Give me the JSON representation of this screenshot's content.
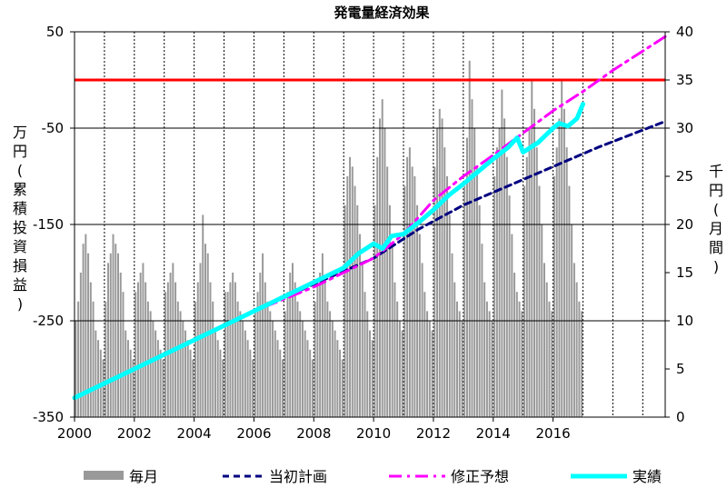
{
  "chart_data": {
    "type": "bar+line",
    "title": "発電量経済効果",
    "y_left": {
      "label": [
        "万",
        "円",
        "(",
        "累",
        "積",
        "投",
        "資",
        "損",
        "益",
        ")"
      ],
      "range": [
        -350,
        50
      ],
      "ticks": [
        "50",
        "-50",
        "-150",
        "-250",
        "-350"
      ],
      "tick_values": [
        50,
        -50,
        -150,
        -250,
        -350
      ]
    },
    "y_right": {
      "label": [
        "千",
        "円",
        "(",
        "月",
        "間",
        ")"
      ],
      "range": [
        0,
        40
      ],
      "ticks": [
        "40",
        "35",
        "30",
        "25",
        "20",
        "15",
        "10",
        "5",
        "0"
      ],
      "tick_values": [
        40,
        35,
        30,
        25,
        20,
        15,
        10,
        5,
        0
      ]
    },
    "x": {
      "range": [
        2000,
        2019.75
      ],
      "ticks": [
        "2000",
        "2002",
        "2004",
        "2006",
        "2008",
        "2010",
        "2012",
        "2014",
        "2016"
      ],
      "tick_values": [
        2000,
        2002,
        2004,
        2006,
        2008,
        2010,
        2012,
        2014,
        2016
      ]
    },
    "grid": {
      "vertical": "dotted, yearly",
      "horizontal": "solid, every 100 (left axis)"
    },
    "reference_line": {
      "axis": "left",
      "value": 0,
      "color": "#ff0000"
    },
    "series": [
      {
        "name": "毎月",
        "type": "bar",
        "axis": "right",
        "color": "#999999",
        "x_start": 2000.0,
        "x_step_months": 1,
        "values": [
          10.0,
          12.0,
          15.0,
          18.0,
          19.0,
          17.0,
          14.0,
          12.0,
          9.0,
          8.0,
          7.0,
          6.0,
          12.0,
          16.0,
          17.0,
          19.0,
          18.0,
          17.0,
          15.0,
          13.0,
          9.0,
          8.0,
          7.0,
          6.0,
          13.0,
          14.0,
          15.0,
          16.0,
          14.0,
          12.0,
          11.0,
          10.0,
          9.0,
          8.0,
          7.0,
          6.0,
          13.0,
          14.0,
          15.0,
          16.0,
          14.0,
          12.0,
          11.0,
          10.0,
          9.0,
          8.0,
          7.0,
          6.0,
          12.0,
          14.0,
          16.0,
          21.0,
          18.0,
          17.0,
          14.0,
          12.0,
          9.0,
          8.0,
          7.0,
          6.0,
          13.0,
          13.0,
          14.0,
          15.0,
          14.0,
          12.0,
          11.0,
          10.0,
          9.0,
          8.0,
          7.0,
          6.0,
          11.0,
          13.0,
          15.0,
          17.0,
          14.0,
          12.0,
          11.0,
          10.0,
          9.0,
          8.0,
          7.0,
          6.0,
          11.0,
          13.0,
          15.0,
          16.0,
          14.0,
          12.0,
          11.0,
          10.0,
          9.0,
          8.0,
          7.0,
          6.0,
          12.0,
          14.0,
          15.0,
          17.0,
          14.0,
          12.0,
          11.0,
          10.0,
          9.0,
          8.0,
          7.0,
          6.0,
          22.0,
          25.0,
          27.0,
          26.0,
          24.0,
          22.0,
          19.0,
          16.0,
          13.0,
          11.0,
          9.0,
          8.0,
          22.0,
          27.0,
          31.0,
          33.0,
          30.0,
          26.0,
          22.0,
          18.0,
          14.0,
          12.0,
          10.0,
          9.0,
          24.0,
          27.0,
          28.0,
          26.0,
          25.0,
          22.0,
          19.0,
          16.0,
          13.0,
          11.0,
          10.0,
          9.0,
          26.0,
          30.0,
          32.0,
          31.0,
          28.0,
          25.0,
          21.0,
          17.0,
          14.0,
          12.0,
          11.0,
          10.0,
          24.0,
          29.0,
          37.0,
          33.0,
          30.0,
          26.0,
          22.0,
          18.0,
          14.0,
          12.0,
          11.0,
          10.0,
          25.0,
          28.0,
          30.0,
          34.0,
          31.0,
          27.0,
          23.0,
          19.0,
          15.0,
          13.0,
          12.0,
          11.0,
          24.0,
          27.0,
          30.0,
          35.0,
          32.0,
          28.0,
          24.0,
          20.0,
          16.0,
          14.0,
          12.0,
          11.0,
          25.0,
          28.0,
          31.0,
          35.0,
          32.0,
          28.0,
          24.0,
          20.0,
          16.0,
          14.0,
          12.0,
          11.0
        ]
      },
      {
        "name": "当初計画",
        "type": "line",
        "axis": "left",
        "color": "#000080",
        "dash": "dashed",
        "x": [
          2000,
          2002,
          2004,
          2006,
          2008,
          2010,
          2011.5,
          2013,
          2014.5,
          2016,
          2017.5,
          2019,
          2019.75
        ],
        "y": [
          -330,
          -300,
          -270,
          -240,
          -212,
          -185,
          -155,
          -130,
          -110,
          -90,
          -70,
          -52,
          -43
        ]
      },
      {
        "name": "修正予想",
        "type": "line",
        "axis": "left",
        "color": "#ff00ff",
        "dash": "long-dash",
        "x": [
          2000,
          2002,
          2004,
          2006,
          2008,
          2009,
          2010,
          2011,
          2012,
          2013,
          2014,
          2015,
          2016,
          2017,
          2018,
          2019,
          2019.75
        ],
        "y": [
          -330,
          -300,
          -270,
          -240,
          -215,
          -200,
          -185,
          -160,
          -125,
          -100,
          -78,
          -55,
          -32,
          -12,
          10,
          30,
          45
        ]
      },
      {
        "name": "実績",
        "type": "line",
        "axis": "left",
        "color": "#00ffff",
        "x": [
          2000,
          2001,
          2002,
          2003,
          2004,
          2005,
          2006,
          2007,
          2008,
          2009,
          2009.5,
          2010,
          2010.3,
          2010.6,
          2011,
          2011.5,
          2012,
          2012.5,
          2013,
          2013.5,
          2014,
          2014.5,
          2014.8,
          2015,
          2015.5,
          2016,
          2016.2,
          2016.5,
          2016.8,
          2017
        ],
        "y": [
          -330,
          -315,
          -300,
          -285,
          -270,
          -255,
          -240,
          -225,
          -210,
          -195,
          -180,
          -170,
          -175,
          -162,
          -160,
          -148,
          -135,
          -120,
          -108,
          -95,
          -82,
          -70,
          -60,
          -75,
          -65,
          -50,
          -45,
          -48,
          -40,
          -25
        ]
      }
    ],
    "legend": {
      "position": "bottom",
      "entries": [
        "毎月",
        "当初計画",
        "修正予想",
        "実績"
      ]
    }
  }
}
